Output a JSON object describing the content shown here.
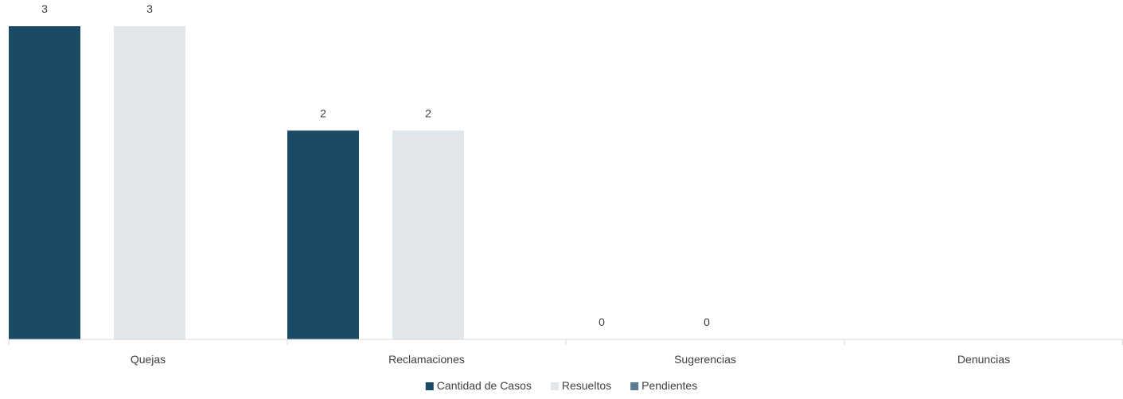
{
  "chart_data": {
    "type": "bar",
    "title": "",
    "xlabel": "",
    "ylabel": "",
    "ylim": [
      0,
      3
    ],
    "grid": false,
    "legend_position": "bottom",
    "categories": [
      "Quejas",
      "Reclamaciones",
      "Sugerencias",
      "Denuncias"
    ],
    "series": [
      {
        "name": "Cantidad de Casos",
        "color": "#1b4a66",
        "values": [
          3,
          2,
          0,
          null
        ],
        "labels": [
          "3",
          "2",
          "0",
          ""
        ]
      },
      {
        "name": "Resueltos",
        "color": "#e1e6ea",
        "values": [
          3,
          2,
          0,
          null
        ],
        "labels": [
          "3",
          "2",
          "0",
          ""
        ]
      },
      {
        "name": "Pendientes",
        "color": "#5b7d93",
        "values": [
          null,
          null,
          null,
          null
        ],
        "labels": [
          "",
          "",
          "",
          ""
        ]
      }
    ]
  }
}
